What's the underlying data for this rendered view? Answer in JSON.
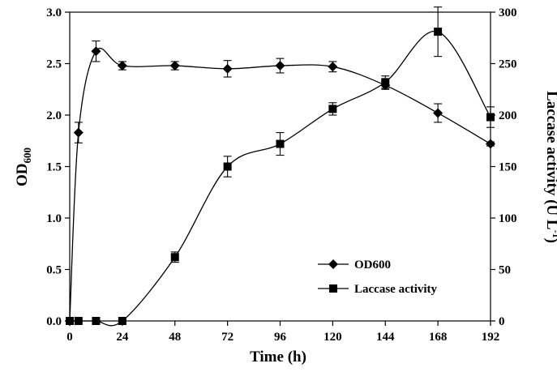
{
  "chart_data": {
    "type": "line",
    "title": "",
    "xlabel": "Time (h)",
    "ylabel_left": {
      "main": "OD",
      "sub": "600"
    },
    "ylabel_right": {
      "main": "Laccase activity (U L",
      "sup": "-1",
      "end": ")"
    },
    "xlim": [
      0,
      192
    ],
    "ylim_left": [
      0,
      3.0
    ],
    "ylim_right": [
      0,
      300
    ],
    "x_ticks": [
      0,
      24,
      48,
      72,
      96,
      120,
      144,
      168,
      192
    ],
    "y_left_ticks": [
      "0.0",
      "0.5",
      "1.0",
      "1.5",
      "2.0",
      "2.5",
      "3.0"
    ],
    "y_right_ticks": [
      "0",
      "50",
      "100",
      "150",
      "200",
      "250",
      "300"
    ],
    "legend_position": "bottom-right",
    "grid": false,
    "series": [
      {
        "name": "OD600",
        "axis": "left",
        "marker": "diamond",
        "x": [
          0,
          4,
          12,
          24,
          48,
          72,
          96,
          120,
          144,
          168,
          192
        ],
        "y": [
          0.0,
          1.83,
          2.62,
          2.48,
          2.48,
          2.45,
          2.48,
          2.47,
          2.29,
          2.02,
          1.72
        ],
        "error": [
          0,
          0.1,
          0.1,
          0.04,
          0.04,
          0.08,
          0.07,
          0.05,
          0.04,
          0.09,
          0.02
        ]
      },
      {
        "name": "Laccase activity",
        "axis": "right",
        "marker": "square",
        "x": [
          0,
          4,
          12,
          24,
          48,
          72,
          96,
          120,
          144,
          168,
          192
        ],
        "y": [
          0,
          0,
          0,
          0,
          62,
          150,
          172,
          206,
          232,
          281,
          198
        ],
        "error": [
          0,
          0,
          0,
          0,
          5,
          10,
          11,
          6,
          6,
          24,
          10
        ]
      }
    ]
  }
}
